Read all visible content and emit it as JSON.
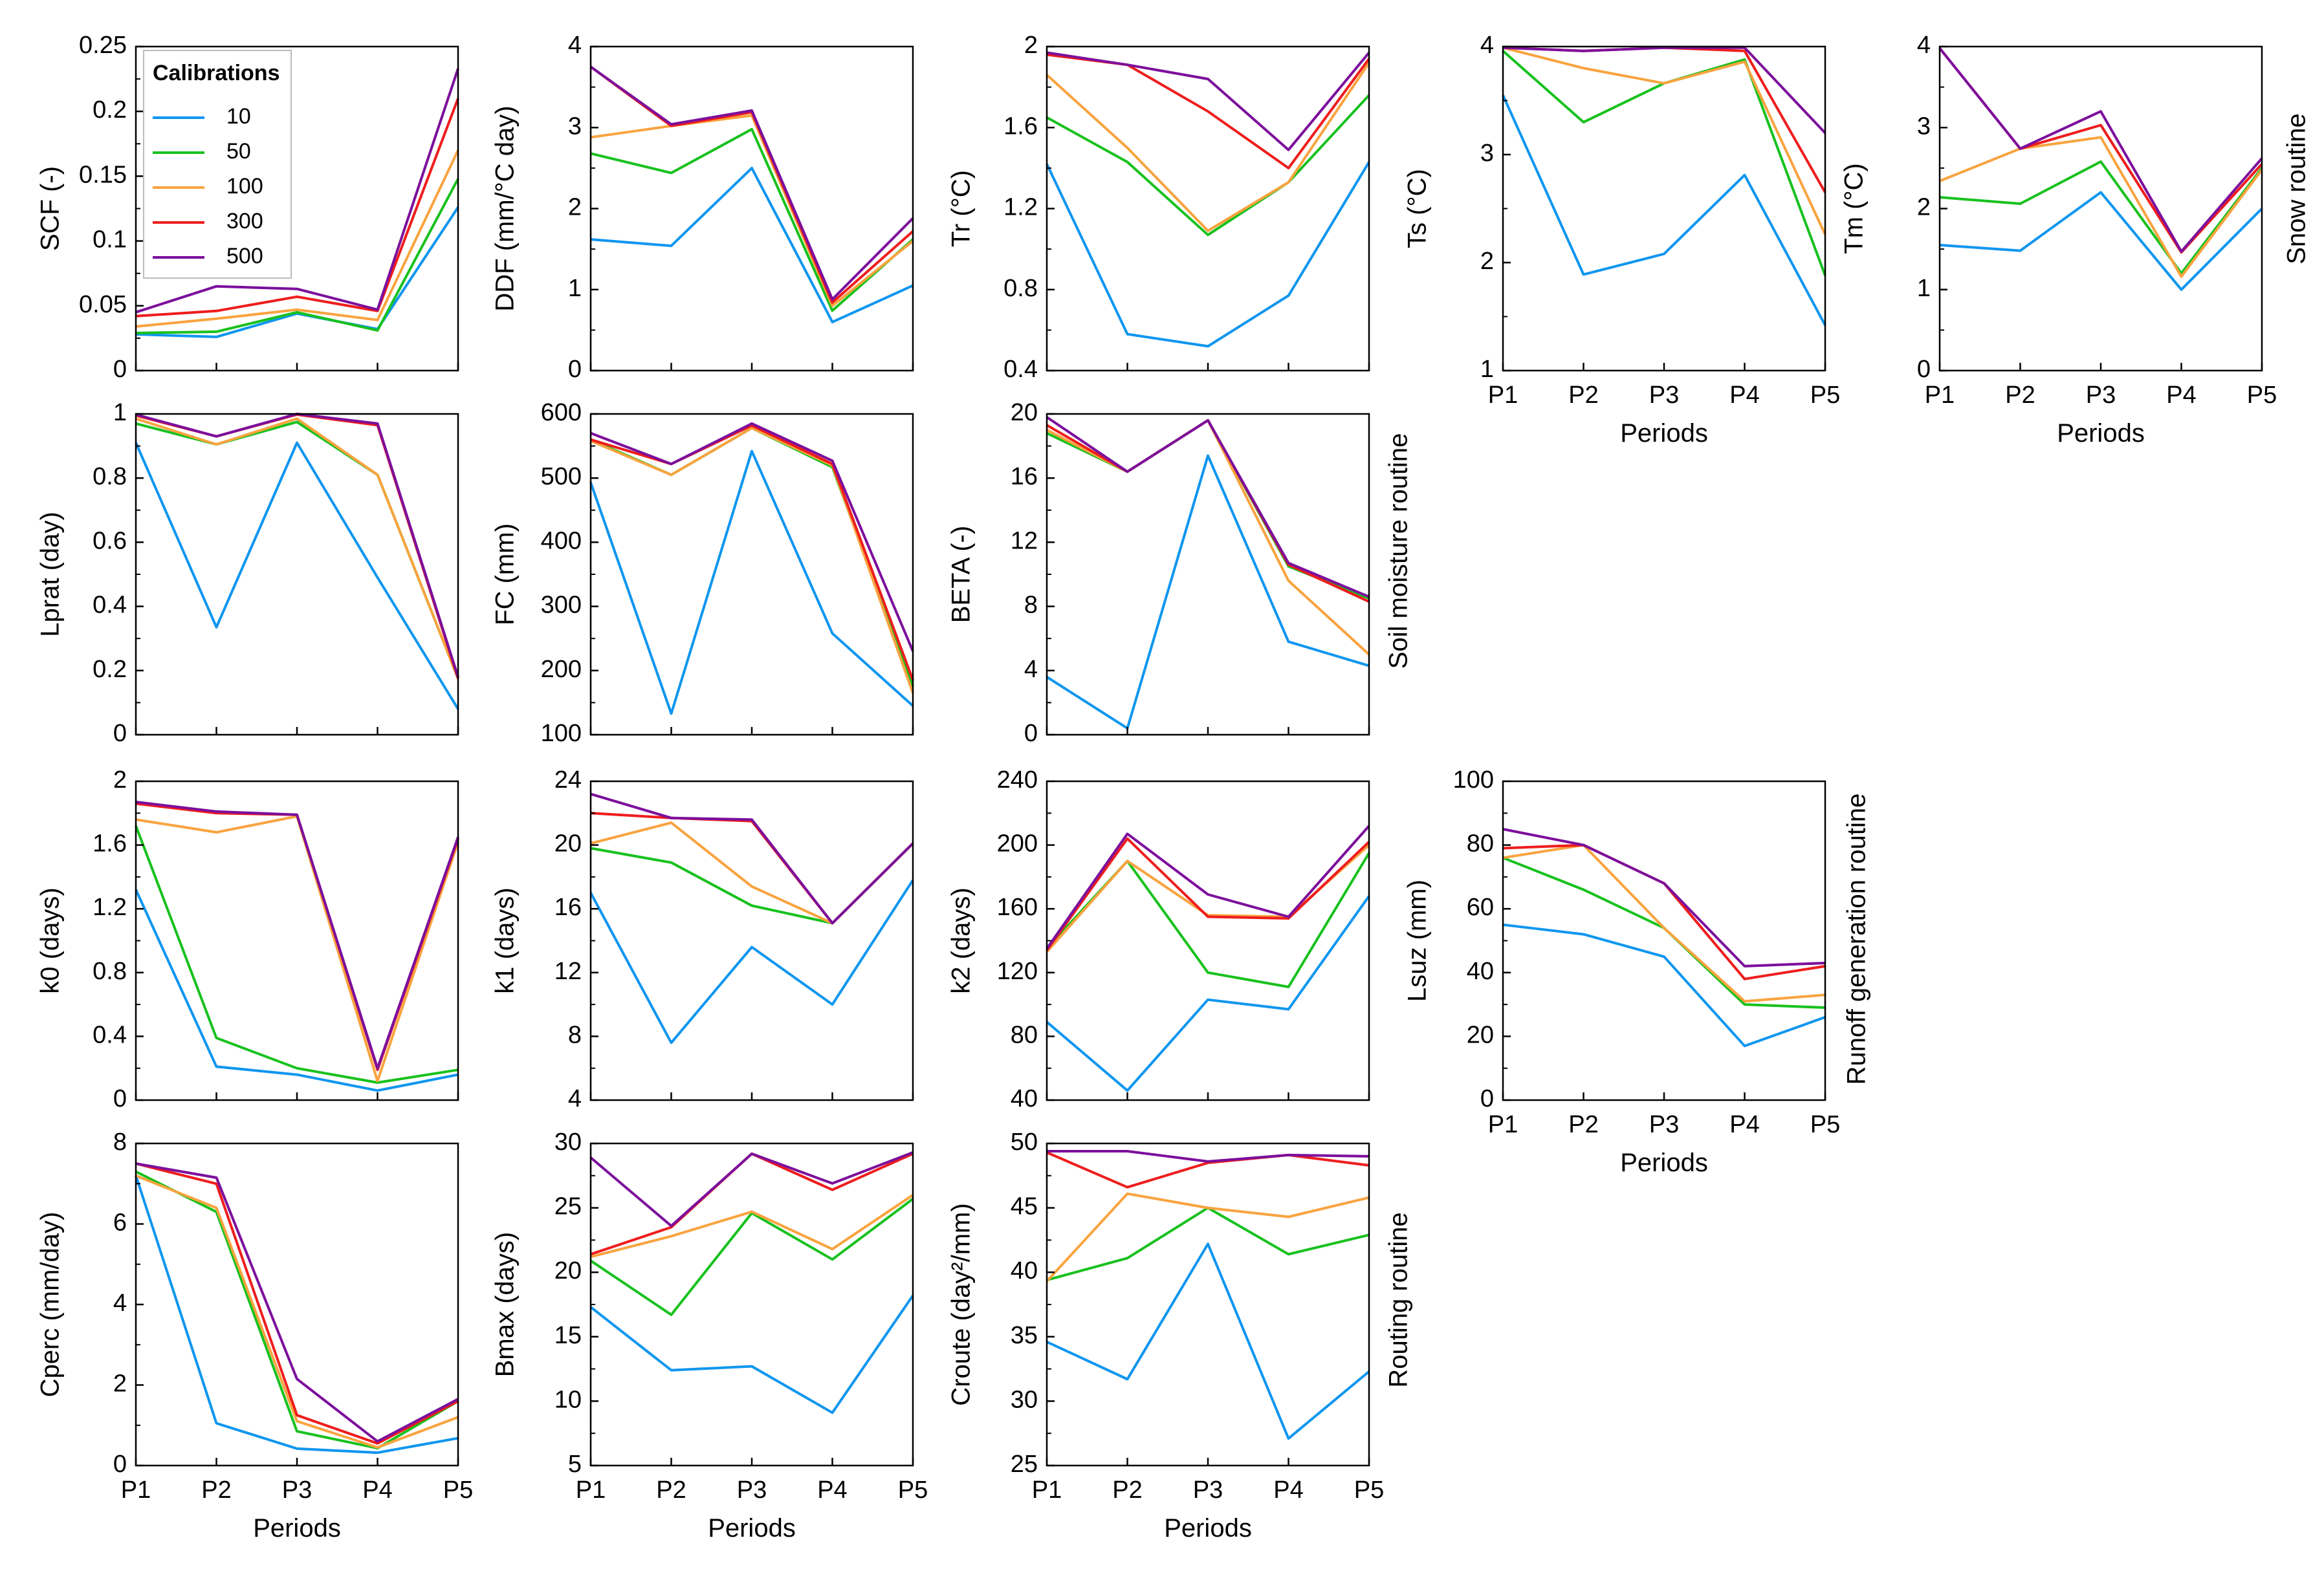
{
  "figure": {
    "legend": {
      "title": "Calibrations",
      "entries": [
        {
          "name": "10",
          "color": "#0f96ef"
        },
        {
          "name": "50",
          "color": "#18c11e"
        },
        {
          "name": "100",
          "color": "#f9a33f"
        },
        {
          "name": "300",
          "color": "#ee1d1d"
        },
        {
          "name": "500",
          "color": "#7c0f9c"
        }
      ]
    },
    "routine_labels": {
      "snow": "Snow routine",
      "soil": "Soil moisture routine",
      "runoff": "Runoff generation routine",
      "routing": "Routing routine"
    }
  },
  "chart_data": [
    {
      "type": "line",
      "id": "scf",
      "ylabel": "SCF (-)",
      "xlabel": "",
      "categories": [
        "P1",
        "P2",
        "P3",
        "P4",
        "P5"
      ],
      "ylim": [
        0,
        0.25
      ],
      "yticks": [
        "0",
        "0.05",
        "0.1",
        "0.15",
        "0.2",
        "0.25"
      ],
      "series": [
        {
          "name": "10",
          "values": [
            0.028,
            0.026,
            0.044,
            0.032,
            0.126
          ]
        },
        {
          "name": "50",
          "values": [
            0.029,
            0.03,
            0.045,
            0.031,
            0.148
          ]
        },
        {
          "name": "100",
          "values": [
            0.034,
            0.04,
            0.047,
            0.039,
            0.17
          ]
        },
        {
          "name": "300",
          "values": [
            0.042,
            0.046,
            0.057,
            0.046,
            0.21
          ]
        },
        {
          "name": "500",
          "values": [
            0.045,
            0.065,
            0.063,
            0.047,
            0.233
          ]
        }
      ]
    },
    {
      "type": "line",
      "id": "ddf",
      "ylabel": "DDF (mm/°C day)",
      "xlabel": "",
      "categories": [
        "P1",
        "P2",
        "P3",
        "P4",
        "P5"
      ],
      "ylim": [
        0,
        4
      ],
      "yticks": [
        "0",
        "1",
        "2",
        "3",
        "4"
      ],
      "series": [
        {
          "name": "10",
          "values": [
            1.62,
            1.54,
            2.5,
            0.6,
            1.05
          ]
        },
        {
          "name": "50",
          "values": [
            2.68,
            2.44,
            2.98,
            0.74,
            1.62
          ]
        },
        {
          "name": "100",
          "values": [
            2.88,
            3.02,
            3.15,
            0.8,
            1.6
          ]
        },
        {
          "name": "300",
          "values": [
            3.75,
            3.02,
            3.19,
            0.84,
            1.72
          ]
        },
        {
          "name": "500",
          "values": [
            3.75,
            3.04,
            3.21,
            0.88,
            1.88
          ]
        }
      ]
    },
    {
      "type": "line",
      "id": "tr",
      "ylabel": "Tr (°C)",
      "xlabel": "",
      "categories": [
        "P1",
        "P2",
        "P3",
        "P4",
        "P5"
      ],
      "ylim": [
        0.4,
        2
      ],
      "yticks": [
        "0.4",
        "0.8",
        "1.2",
        "1.6",
        "2"
      ],
      "series": [
        {
          "name": "10",
          "values": [
            1.42,
            0.58,
            0.52,
            0.77,
            1.43
          ]
        },
        {
          "name": "50",
          "values": [
            1.65,
            1.43,
            1.07,
            1.33,
            1.76
          ]
        },
        {
          "name": "100",
          "values": [
            1.86,
            1.5,
            1.09,
            1.33,
            1.92
          ]
        },
        {
          "name": "300",
          "values": [
            1.96,
            1.91,
            1.68,
            1.4,
            1.94
          ]
        },
        {
          "name": "500",
          "values": [
            1.97,
            1.91,
            1.84,
            1.49,
            1.97
          ]
        }
      ]
    },
    {
      "type": "line",
      "id": "ts",
      "ylabel": "Ts (°C)",
      "xlabel": "Periods",
      "categories": [
        "P1",
        "P2",
        "P3",
        "P4",
        "P5"
      ],
      "ylim": [
        1,
        4
      ],
      "yticks": [
        "1",
        "2",
        "3",
        "4"
      ],
      "series": [
        {
          "name": "10",
          "values": [
            3.55,
            1.89,
            2.08,
            2.81,
            1.42
          ]
        },
        {
          "name": "50",
          "values": [
            3.96,
            3.3,
            3.66,
            3.88,
            1.88
          ]
        },
        {
          "name": "100",
          "values": [
            3.99,
            3.8,
            3.66,
            3.86,
            2.26
          ]
        },
        {
          "name": "300",
          "values": [
            3.99,
            3.96,
            3.99,
            3.96,
            2.65
          ]
        },
        {
          "name": "500",
          "values": [
            3.99,
            3.96,
            3.99,
            3.99,
            3.2
          ]
        }
      ]
    },
    {
      "type": "line",
      "id": "tm",
      "ylabel": "Tm (°C)",
      "xlabel": "Periods",
      "categories": [
        "P1",
        "P2",
        "P3",
        "P4",
        "P5"
      ],
      "ylim": [
        0,
        4
      ],
      "yticks": [
        "0",
        "1",
        "2",
        "3",
        "4"
      ],
      "series": [
        {
          "name": "10",
          "values": [
            1.55,
            1.48,
            2.2,
            1.0,
            2.0
          ]
        },
        {
          "name": "50",
          "values": [
            2.14,
            2.06,
            2.58,
            1.2,
            2.5
          ]
        },
        {
          "name": "100",
          "values": [
            2.34,
            2.74,
            2.88,
            1.16,
            2.48
          ]
        },
        {
          "name": "300",
          "values": [
            3.98,
            2.74,
            3.03,
            1.46,
            2.55
          ]
        },
        {
          "name": "500",
          "values": [
            3.98,
            2.74,
            3.2,
            1.47,
            2.62
          ]
        }
      ]
    },
    {
      "type": "line",
      "id": "lprat",
      "ylabel": "Lprat (day)",
      "xlabel": "",
      "categories": [
        "P1",
        "P2",
        "P3",
        "P4",
        "P5"
      ],
      "ylim": [
        0,
        1
      ],
      "yticks": [
        "0",
        "0.2",
        "0.4",
        "0.6",
        "0.8",
        "1"
      ],
      "series": [
        {
          "name": "10",
          "values": [
            0.91,
            0.335,
            0.91,
            0.49,
            0.08
          ]
        },
        {
          "name": "50",
          "values": [
            0.97,
            0.905,
            0.975,
            0.81,
            0.175
          ]
        },
        {
          "name": "100",
          "values": [
            0.985,
            0.905,
            0.985,
            0.81,
            0.175
          ]
        },
        {
          "name": "300",
          "values": [
            0.995,
            0.93,
            0.998,
            0.965,
            0.175
          ]
        },
        {
          "name": "500",
          "values": [
            0.998,
            0.93,
            1.0,
            0.97,
            0.18
          ]
        }
      ]
    },
    {
      "type": "line",
      "id": "fc",
      "ylabel": "FC (mm)",
      "xlabel": "",
      "categories": [
        "P1",
        "P2",
        "P3",
        "P4",
        "P5"
      ],
      "ylim": [
        100,
        600
      ],
      "yticks": [
        "100",
        "200",
        "300",
        "400",
        "500",
        "600"
      ],
      "series": [
        {
          "name": "10",
          "values": [
            493,
            133,
            542,
            258,
            145
          ]
        },
        {
          "name": "50",
          "values": [
            560,
            505,
            578,
            517,
            175
          ]
        },
        {
          "name": "100",
          "values": [
            558,
            505,
            578,
            520,
            165
          ]
        },
        {
          "name": "300",
          "values": [
            560,
            522,
            582,
            522,
            185
          ]
        },
        {
          "name": "500",
          "values": [
            570,
            522,
            585,
            527,
            230
          ]
        }
      ]
    },
    {
      "type": "line",
      "id": "beta",
      "ylabel": "BETA (-)",
      "xlabel": "",
      "categories": [
        "P1",
        "P2",
        "P3",
        "P4",
        "P5"
      ],
      "ylim": [
        0,
        20
      ],
      "yticks": [
        "0",
        "4",
        "8",
        "12",
        "16",
        "20"
      ],
      "series": [
        {
          "name": "10",
          "values": [
            3.6,
            0.4,
            17.4,
            5.8,
            4.3
          ]
        },
        {
          "name": "50",
          "values": [
            18.8,
            16.4,
            19.6,
            10.5,
            8.5
          ]
        },
        {
          "name": "100",
          "values": [
            19.0,
            16.4,
            19.6,
            9.6,
            5.0
          ]
        },
        {
          "name": "300",
          "values": [
            19.3,
            16.4,
            19.6,
            10.6,
            8.3
          ]
        },
        {
          "name": "500",
          "values": [
            19.8,
            16.4,
            19.6,
            10.7,
            8.6
          ]
        }
      ]
    },
    {
      "type": "line",
      "id": "k0",
      "ylabel": "k0 (days)",
      "xlabel": "",
      "categories": [
        "P1",
        "P2",
        "P3",
        "P4",
        "P5"
      ],
      "ylim": [
        0,
        2
      ],
      "yticks": [
        "0",
        "0.4",
        "0.8",
        "1.2",
        "1.6",
        "2"
      ],
      "series": [
        {
          "name": "10",
          "values": [
            1.32,
            0.21,
            0.16,
            0.06,
            0.16
          ]
        },
        {
          "name": "50",
          "values": [
            1.72,
            0.39,
            0.2,
            0.11,
            0.19
          ]
        },
        {
          "name": "100",
          "values": [
            1.76,
            1.68,
            1.78,
            0.12,
            1.62
          ]
        },
        {
          "name": "300",
          "values": [
            1.86,
            1.8,
            1.79,
            0.19,
            1.64
          ]
        },
        {
          "name": "500",
          "values": [
            1.87,
            1.81,
            1.79,
            0.2,
            1.65
          ]
        }
      ]
    },
    {
      "type": "line",
      "id": "k1",
      "ylabel": "k1 (days)",
      "xlabel": "",
      "categories": [
        "P1",
        "P2",
        "P3",
        "P4",
        "P5"
      ],
      "ylim": [
        4,
        24
      ],
      "yticks": [
        "4",
        "8",
        "12",
        "16",
        "20",
        "24"
      ],
      "series": [
        {
          "name": "10",
          "values": [
            17.0,
            7.6,
            13.6,
            10.0,
            17.8
          ]
        },
        {
          "name": "50",
          "values": [
            19.8,
            18.9,
            16.2,
            15.1,
            20.1
          ]
        },
        {
          "name": "100",
          "values": [
            20.1,
            21.4,
            17.4,
            15.1,
            20.1
          ]
        },
        {
          "name": "300",
          "values": [
            22.0,
            21.7,
            21.5,
            15.1,
            20.1
          ]
        },
        {
          "name": "500",
          "values": [
            23.2,
            21.7,
            21.6,
            15.1,
            20.1
          ]
        }
      ]
    },
    {
      "type": "line",
      "id": "k2",
      "ylabel": "k2 (days)",
      "xlabel": "",
      "categories": [
        "P1",
        "P2",
        "P3",
        "P4",
        "P5"
      ],
      "ylim": [
        40,
        240
      ],
      "yticks": [
        "40",
        "80",
        "120",
        "160",
        "200",
        "240"
      ],
      "series": [
        {
          "name": "10",
          "values": [
            89,
            46,
            103,
            97,
            168
          ]
        },
        {
          "name": "50",
          "values": [
            135,
            190,
            120,
            111,
            195
          ]
        },
        {
          "name": "100",
          "values": [
            133,
            190,
            156,
            155,
            200
          ]
        },
        {
          "name": "300",
          "values": [
            134,
            204,
            155,
            154,
            202
          ]
        },
        {
          "name": "500",
          "values": [
            135,
            207,
            169,
            155,
            212
          ]
        }
      ]
    },
    {
      "type": "line",
      "id": "lsuz",
      "ylabel": "Lsuz (mm)",
      "xlabel": "Periods",
      "categories": [
        "P1",
        "P2",
        "P3",
        "P4",
        "P5"
      ],
      "ylim": [
        0,
        100
      ],
      "yticks": [
        "0",
        "20",
        "40",
        "60",
        "80",
        "100"
      ],
      "series": [
        {
          "name": "10",
          "values": [
            55,
            52,
            45,
            17,
            26
          ]
        },
        {
          "name": "50",
          "values": [
            76,
            66,
            54,
            30,
            29
          ]
        },
        {
          "name": "100",
          "values": [
            76,
            80,
            54,
            31,
            33
          ]
        },
        {
          "name": "300",
          "values": [
            79,
            80,
            68,
            38,
            42
          ]
        },
        {
          "name": "500",
          "values": [
            85,
            80,
            68,
            42,
            43
          ]
        }
      ]
    },
    {
      "type": "line",
      "id": "cperc",
      "ylabel": "Cperc (mm/day)",
      "xlabel": "Periods",
      "categories": [
        "P1",
        "P2",
        "P3",
        "P4",
        "P5"
      ],
      "ylim": [
        0,
        8
      ],
      "yticks": [
        "0",
        "2",
        "4",
        "6",
        "8"
      ],
      "series": [
        {
          "name": "10",
          "values": [
            7.2,
            1.05,
            0.42,
            0.32,
            0.68
          ]
        },
        {
          "name": "50",
          "values": [
            7.3,
            6.3,
            0.85,
            0.43,
            1.6
          ]
        },
        {
          "name": "100",
          "values": [
            7.2,
            6.4,
            1.1,
            0.45,
            1.2
          ]
        },
        {
          "name": "300",
          "values": [
            7.5,
            7.0,
            1.25,
            0.55,
            1.6
          ]
        },
        {
          "name": "500",
          "values": [
            7.5,
            7.15,
            2.15,
            0.6,
            1.65
          ]
        }
      ]
    },
    {
      "type": "line",
      "id": "bmax",
      "ylabel": "Bmax (days)",
      "xlabel": "Periods",
      "categories": [
        "P1",
        "P2",
        "P3",
        "P4",
        "P5"
      ],
      "ylim": [
        5,
        30
      ],
      "yticks": [
        "5",
        "10",
        "15",
        "20",
        "25",
        "30"
      ],
      "series": [
        {
          "name": "10",
          "values": [
            17.3,
            12.4,
            12.7,
            9.1,
            18.2
          ]
        },
        {
          "name": "50",
          "values": [
            20.9,
            16.7,
            24.6,
            21.0,
            25.7
          ]
        },
        {
          "name": "100",
          "values": [
            21.2,
            22.8,
            24.7,
            21.8,
            26.0
          ]
        },
        {
          "name": "300",
          "values": [
            21.4,
            23.5,
            29.2,
            26.4,
            29.2
          ]
        },
        {
          "name": "500",
          "values": [
            28.9,
            23.6,
            29.2,
            26.9,
            29.3
          ]
        }
      ]
    },
    {
      "type": "line",
      "id": "croute",
      "ylabel": "Croute (day²/mm)",
      "xlabel": "Periods",
      "categories": [
        "P1",
        "P2",
        "P3",
        "P4",
        "P5"
      ],
      "ylim": [
        25,
        50
      ],
      "yticks": [
        "25",
        "30",
        "35",
        "40",
        "45",
        "50"
      ],
      "series": [
        {
          "name": "10",
          "values": [
            34.6,
            31.7,
            42.2,
            27.1,
            32.3
          ]
        },
        {
          "name": "50",
          "values": [
            39.4,
            41.1,
            45.0,
            41.4,
            42.9
          ]
        },
        {
          "name": "100",
          "values": [
            39.3,
            46.1,
            45.0,
            44.3,
            45.8
          ]
        },
        {
          "name": "300",
          "values": [
            49.3,
            46.6,
            48.5,
            49.1,
            48.3
          ]
        },
        {
          "name": "500",
          "values": [
            49.4,
            49.4,
            48.6,
            49.1,
            49.0
          ]
        }
      ]
    }
  ]
}
